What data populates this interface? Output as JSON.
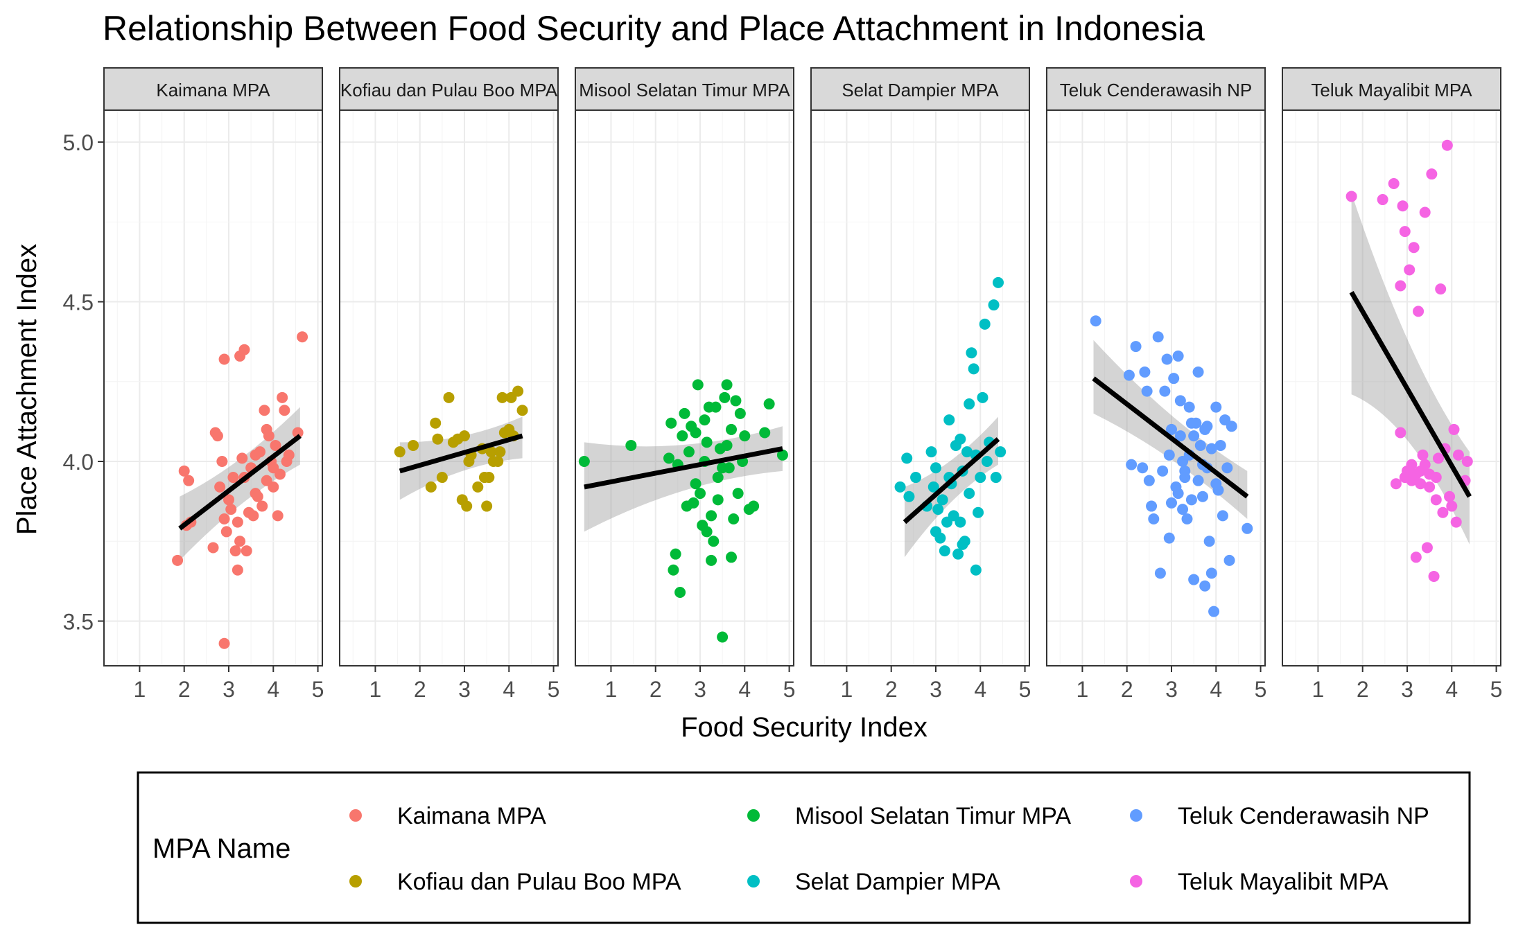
{
  "chart_data": {
    "type": "scatter",
    "title": "Relationship Between Food Security and Place Attachment in Indonesia",
    "xlabel": "Food Security Index",
    "ylabel": "Place Attachment Index",
    "xlim": [
      0.2,
      5.1
    ],
    "ylim": [
      3.36,
      5.1
    ],
    "x_ticks": [
      1,
      2,
      3,
      4,
      5
    ],
    "y_ticks": [
      3.5,
      4.0,
      4.5,
      5.0
    ],
    "y_tick_labels": [
      "3.5",
      "4.0",
      "4.5",
      "5.0"
    ],
    "grid": true,
    "legend": {
      "title": "MPA Name",
      "position": "bottom",
      "entries": [
        "Kaimana MPA",
        "Kofiau dan Pulau  Boo MPA",
        "Misool Selatan Timur MPA",
        "Selat Dampier MPA",
        "Teluk Cenderawasih NP",
        "Teluk Mayalibit MPA"
      ]
    },
    "panels": [
      {
        "name": "Kaimana MPA",
        "color": "#F8766D",
        "trend": {
          "x": [
            1.9,
            4.6
          ],
          "y": [
            3.79,
            4.08
          ],
          "band_lo_ends": [
            3.69,
            3.99
          ],
          "band_hi_ends": [
            3.89,
            4.17
          ]
        },
        "points": [
          [
            1.85,
            3.69
          ],
          [
            2.0,
            3.97
          ],
          [
            2.05,
            3.8
          ],
          [
            2.1,
            3.94
          ],
          [
            2.15,
            3.81
          ],
          [
            2.65,
            3.73
          ],
          [
            2.7,
            4.09
          ],
          [
            2.75,
            4.08
          ],
          [
            2.8,
            3.92
          ],
          [
            2.85,
            4.0
          ],
          [
            2.9,
            3.82
          ],
          [
            2.95,
            3.78
          ],
          [
            3.0,
            3.88
          ],
          [
            3.05,
            3.85
          ],
          [
            3.1,
            3.95
          ],
          [
            3.15,
            3.72
          ],
          [
            3.2,
            3.81
          ],
          [
            3.25,
            4.33
          ],
          [
            3.3,
            4.01
          ],
          [
            3.35,
            3.95
          ],
          [
            3.4,
            3.72
          ],
          [
            3.45,
            3.84
          ],
          [
            3.5,
            3.98
          ],
          [
            3.55,
            3.83
          ],
          [
            3.6,
            4.02
          ],
          [
            3.65,
            3.89
          ],
          [
            3.7,
            4.03
          ],
          [
            3.75,
            3.86
          ],
          [
            3.8,
            4.16
          ],
          [
            3.85,
            3.94
          ],
          [
            3.9,
            4.08
          ],
          [
            3.95,
            4.0
          ],
          [
            4.0,
            3.92
          ],
          [
            4.05,
            4.05
          ],
          [
            4.1,
            3.83
          ],
          [
            4.15,
            3.96
          ],
          [
            4.2,
            4.2
          ],
          [
            4.25,
            4.16
          ],
          [
            4.3,
            4.0
          ],
          [
            4.35,
            4.02
          ],
          [
            4.55,
            4.09
          ],
          [
            4.65,
            4.39
          ],
          [
            2.9,
            4.32
          ],
          [
            3.35,
            4.35
          ],
          [
            3.2,
            3.66
          ],
          [
            2.9,
            3.43
          ],
          [
            3.25,
            3.75
          ],
          [
            3.6,
            3.9
          ],
          [
            3.85,
            4.1
          ],
          [
            4.0,
            3.98
          ]
        ]
      },
      {
        "name": "Kofiau dan Pulau  Boo MPA",
        "color": "#B79F00",
        "trend": {
          "x": [
            1.55,
            4.3
          ],
          "y": [
            3.97,
            4.08
          ],
          "band_lo_ends": [
            3.88,
            4.01
          ],
          "band_hi_ends": [
            4.06,
            4.14
          ]
        },
        "points": [
          [
            1.55,
            4.03
          ],
          [
            1.85,
            4.05
          ],
          [
            2.25,
            3.92
          ],
          [
            2.35,
            4.12
          ],
          [
            2.4,
            4.07
          ],
          [
            2.5,
            3.95
          ],
          [
            2.65,
            4.2
          ],
          [
            2.75,
            4.06
          ],
          [
            2.85,
            4.07
          ],
          [
            2.95,
            3.88
          ],
          [
            3.0,
            4.08
          ],
          [
            3.05,
            3.86
          ],
          [
            3.1,
            4.0
          ],
          [
            3.15,
            4.02
          ],
          [
            3.3,
            3.92
          ],
          [
            3.4,
            4.04
          ],
          [
            3.45,
            3.95
          ],
          [
            3.5,
            3.86
          ],
          [
            3.55,
            3.95
          ],
          [
            3.6,
            4.03
          ],
          [
            3.65,
            4.0
          ],
          [
            3.75,
            4.0
          ],
          [
            3.8,
            4.03
          ],
          [
            3.85,
            4.2
          ],
          [
            3.9,
            4.09
          ],
          [
            4.0,
            4.1
          ],
          [
            4.05,
            4.2
          ],
          [
            4.1,
            4.08
          ],
          [
            4.2,
            4.22
          ],
          [
            4.3,
            4.16
          ]
        ]
      },
      {
        "name": "Misool Selatan Timur MPA",
        "color": "#00BA38",
        "trend": {
          "x": [
            0.4,
            4.85
          ],
          "y": [
            3.92,
            4.04
          ],
          "band_lo_ends": [
            3.78,
            3.97
          ],
          "band_hi_ends": [
            4.06,
            4.11
          ]
        },
        "points": [
          [
            0.4,
            4.0
          ],
          [
            1.45,
            4.05
          ],
          [
            2.3,
            4.01
          ],
          [
            2.35,
            4.12
          ],
          [
            2.4,
            3.66
          ],
          [
            2.45,
            3.71
          ],
          [
            2.5,
            3.99
          ],
          [
            2.55,
            3.59
          ],
          [
            2.6,
            4.08
          ],
          [
            2.65,
            4.15
          ],
          [
            2.7,
            3.86
          ],
          [
            2.75,
            4.03
          ],
          [
            2.8,
            4.11
          ],
          [
            2.85,
            3.87
          ],
          [
            2.9,
            4.09
          ],
          [
            2.95,
            4.24
          ],
          [
            3.0,
            3.9
          ],
          [
            3.05,
            3.8
          ],
          [
            3.1,
            4.0
          ],
          [
            3.15,
            3.78
          ],
          [
            3.2,
            4.17
          ],
          [
            3.25,
            3.83
          ],
          [
            3.3,
            3.75
          ],
          [
            3.35,
            4.17
          ],
          [
            3.4,
            3.95
          ],
          [
            3.45,
            4.04
          ],
          [
            3.5,
            3.45
          ],
          [
            3.55,
            4.2
          ],
          [
            3.6,
            4.24
          ],
          [
            3.65,
            3.98
          ],
          [
            3.7,
            4.1
          ],
          [
            3.75,
            3.82
          ],
          [
            3.8,
            4.19
          ],
          [
            3.85,
            3.9
          ],
          [
            3.9,
            4.15
          ],
          [
            3.95,
            4.0
          ],
          [
            4.0,
            4.08
          ],
          [
            4.1,
            3.85
          ],
          [
            4.2,
            3.86
          ],
          [
            4.45,
            4.09
          ],
          [
            4.55,
            4.18
          ],
          [
            4.85,
            4.02
          ],
          [
            3.25,
            3.69
          ],
          [
            3.7,
            3.7
          ],
          [
            3.1,
            4.13
          ],
          [
            3.4,
            3.88
          ],
          [
            3.6,
            4.05
          ],
          [
            2.9,
            3.93
          ],
          [
            3.15,
            4.06
          ],
          [
            3.5,
            3.98
          ]
        ]
      },
      {
        "name": "Selat Dampier MPA",
        "color": "#00BFC4",
        "trend": {
          "x": [
            2.3,
            4.4
          ],
          "y": [
            3.81,
            4.07
          ],
          "band_lo_ends": [
            3.7,
            3.99
          ],
          "band_hi_ends": [
            3.92,
            4.14
          ]
        },
        "points": [
          [
            2.2,
            3.92
          ],
          [
            2.35,
            4.01
          ],
          [
            2.4,
            3.89
          ],
          [
            2.55,
            3.95
          ],
          [
            2.8,
            3.86
          ],
          [
            2.9,
            4.03
          ],
          [
            2.95,
            3.92
          ],
          [
            3.0,
            3.78
          ],
          [
            3.05,
            3.85
          ],
          [
            3.1,
            3.76
          ],
          [
            3.15,
            3.88
          ],
          [
            3.2,
            3.72
          ],
          [
            3.25,
            3.81
          ],
          [
            3.3,
            4.13
          ],
          [
            3.35,
            3.93
          ],
          [
            3.4,
            3.83
          ],
          [
            3.45,
            4.05
          ],
          [
            3.5,
            3.71
          ],
          [
            3.55,
            3.81
          ],
          [
            3.6,
            3.97
          ],
          [
            3.65,
            3.75
          ],
          [
            3.7,
            4.03
          ],
          [
            3.75,
            4.18
          ],
          [
            3.8,
            4.34
          ],
          [
            3.85,
            4.29
          ],
          [
            3.9,
            3.66
          ],
          [
            3.95,
            3.84
          ],
          [
            4.0,
            3.95
          ],
          [
            4.05,
            4.2
          ],
          [
            4.1,
            4.43
          ],
          [
            4.15,
            4.0
          ],
          [
            4.2,
            4.06
          ],
          [
            4.3,
            4.49
          ],
          [
            4.35,
            3.95
          ],
          [
            4.4,
            4.56
          ],
          [
            4.45,
            4.03
          ],
          [
            3.3,
            3.95
          ],
          [
            3.55,
            4.07
          ],
          [
            3.75,
            3.9
          ],
          [
            3.0,
            3.98
          ],
          [
            3.6,
            3.74
          ],
          [
            3.9,
            4.02
          ]
        ]
      },
      {
        "name": "Teluk Cenderawasih NP",
        "color": "#619CFF",
        "trend": {
          "x": [
            1.25,
            4.7
          ],
          "y": [
            4.26,
            3.89
          ],
          "band_lo_ends": [
            4.15,
            3.82
          ],
          "band_hi_ends": [
            4.38,
            3.97
          ]
        },
        "points": [
          [
            1.3,
            4.44
          ],
          [
            2.05,
            4.27
          ],
          [
            2.1,
            3.99
          ],
          [
            2.2,
            4.36
          ],
          [
            2.35,
            3.98
          ],
          [
            2.4,
            4.28
          ],
          [
            2.45,
            4.22
          ],
          [
            2.5,
            3.94
          ],
          [
            2.55,
            3.86
          ],
          [
            2.6,
            3.82
          ],
          [
            2.7,
            4.39
          ],
          [
            2.75,
            3.65
          ],
          [
            2.8,
            3.97
          ],
          [
            2.85,
            4.22
          ],
          [
            2.9,
            4.32
          ],
          [
            2.95,
            3.76
          ],
          [
            3.0,
            3.87
          ],
          [
            3.05,
            4.26
          ],
          [
            3.1,
            3.92
          ],
          [
            3.15,
            4.33
          ],
          [
            3.2,
            4.19
          ],
          [
            3.25,
            4.0
          ],
          [
            3.3,
            3.95
          ],
          [
            3.35,
            3.82
          ],
          [
            3.4,
            4.17
          ],
          [
            3.45,
            3.88
          ],
          [
            3.5,
            3.63
          ],
          [
            3.55,
            4.12
          ],
          [
            3.6,
            4.28
          ],
          [
            3.65,
            4.05
          ],
          [
            3.7,
            3.99
          ],
          [
            3.75,
            3.61
          ],
          [
            3.8,
            4.11
          ],
          [
            3.85,
            3.75
          ],
          [
            3.9,
            3.65
          ],
          [
            3.95,
            3.53
          ],
          [
            4.0,
            4.17
          ],
          [
            4.05,
            3.91
          ],
          [
            4.1,
            4.05
          ],
          [
            4.15,
            3.83
          ],
          [
            4.2,
            4.13
          ],
          [
            4.25,
            3.98
          ],
          [
            4.3,
            3.69
          ],
          [
            4.35,
            4.11
          ],
          [
            4.7,
            3.79
          ],
          [
            3.2,
            4.08
          ],
          [
            3.4,
            4.02
          ],
          [
            3.6,
            3.94
          ],
          [
            3.8,
            3.98
          ],
          [
            3.0,
            4.1
          ],
          [
            3.3,
            3.97
          ],
          [
            3.5,
            4.08
          ],
          [
            3.7,
            3.89
          ],
          [
            3.9,
            4.04
          ],
          [
            2.95,
            4.02
          ],
          [
            3.15,
            3.9
          ],
          [
            3.45,
            4.12
          ],
          [
            3.75,
            4.1
          ],
          [
            4.0,
            3.93
          ],
          [
            3.25,
            3.85
          ]
        ]
      },
      {
        "name": "Teluk Mayalibit MPA",
        "color": "#F564E3",
        "trend": {
          "x": [
            1.75,
            4.4
          ],
          "y": [
            4.53,
            3.89
          ],
          "band_lo_ends": [
            4.21,
            3.74
          ],
          "band_hi_ends": [
            4.84,
            4.03
          ]
        },
        "points": [
          [
            1.75,
            4.83
          ],
          [
            2.45,
            4.82
          ],
          [
            2.7,
            4.87
          ],
          [
            2.75,
            3.93
          ],
          [
            2.85,
            4.09
          ],
          [
            2.9,
            4.8
          ],
          [
            2.95,
            4.72
          ],
          [
            3.0,
            3.97
          ],
          [
            3.05,
            4.6
          ],
          [
            3.1,
            3.94
          ],
          [
            3.15,
            4.67
          ],
          [
            3.2,
            3.7
          ],
          [
            3.25,
            4.47
          ],
          [
            3.3,
            3.93
          ],
          [
            3.35,
            4.02
          ],
          [
            3.4,
            4.78
          ],
          [
            3.45,
            3.73
          ],
          [
            3.5,
            3.96
          ],
          [
            3.55,
            4.9
          ],
          [
            3.6,
            3.64
          ],
          [
            3.65,
            3.88
          ],
          [
            3.7,
            4.01
          ],
          [
            3.75,
            4.54
          ],
          [
            3.8,
            3.84
          ],
          [
            3.85,
            4.04
          ],
          [
            3.9,
            4.99
          ],
          [
            3.95,
            3.89
          ],
          [
            4.0,
            3.86
          ],
          [
            4.05,
            4.1
          ],
          [
            4.1,
            3.81
          ],
          [
            4.15,
            4.02
          ],
          [
            4.3,
            3.94
          ],
          [
            4.35,
            4.0
          ],
          [
            2.85,
            4.55
          ],
          [
            3.1,
            3.99
          ],
          [
            3.3,
            3.97
          ],
          [
            3.5,
            3.92
          ],
          [
            3.65,
            3.95
          ],
          [
            3.2,
            3.96
          ],
          [
            3.4,
            3.99
          ],
          [
            2.95,
            3.95
          ]
        ]
      }
    ]
  }
}
